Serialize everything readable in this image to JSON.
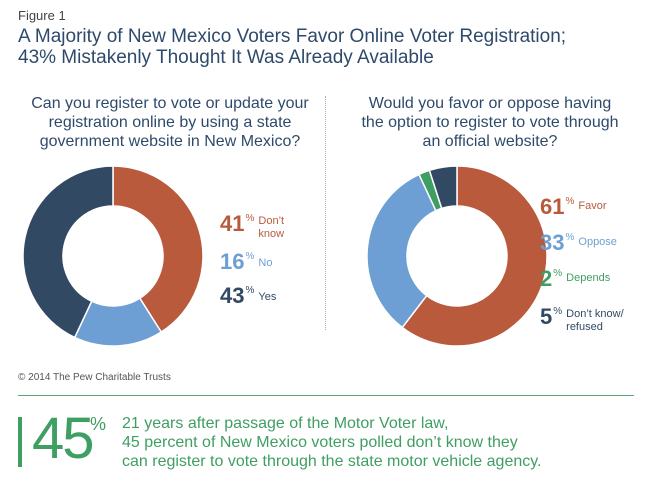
{
  "figure_label": "Figure 1",
  "title_line1": "A Majority of New Mexico Voters Favor Online Voter Registration;",
  "title_line2": "43% Mistakenly Thought It Was Already Available",
  "copyright": "© 2014 The Pew Charitable Trusts",
  "callout": {
    "number": "45",
    "percent_sign": "%",
    "line1": "21 years after passage of the Motor Voter law,",
    "line2": "45 percent of New Mexico voters polled don’t know they",
    "line3": "can register to vote through the state motor vehicle agency."
  },
  "chart_data": [
    {
      "type": "pie",
      "donut": true,
      "title_lines": [
        "Can you register to vote or update your",
        "registration online by using a state",
        "government website in New Mexico?"
      ],
      "slices": [
        {
          "label": "Don’t know",
          "value": 41,
          "display": "41",
          "color": "#b95a3c"
        },
        {
          "label": "No",
          "value": 16,
          "display": "16",
          "color": "#6d9fd4"
        },
        {
          "label": "Yes",
          "value": 43,
          "display": "43",
          "color": "#324964"
        }
      ]
    },
    {
      "type": "pie",
      "donut": true,
      "title_lines": [
        "Would you favor or oppose having",
        "the option to register to vote through",
        "an official website?"
      ],
      "slices": [
        {
          "label": "Favor",
          "value": 61,
          "display": "61",
          "color": "#b95a3c"
        },
        {
          "label": "Oppose",
          "value": 33,
          "display": "33",
          "color": "#6d9fd4"
        },
        {
          "label": "Depends",
          "value": 2,
          "display": "2",
          "color": "#3f9e62"
        },
        {
          "label": "Don’t know/ refused",
          "value": 5,
          "display": "5",
          "color": "#324964"
        }
      ]
    }
  ]
}
